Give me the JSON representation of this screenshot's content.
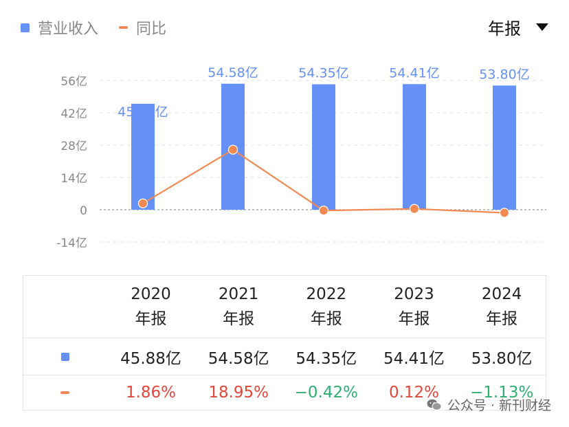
{
  "legend": {
    "bar_label": "营业收入",
    "line_label": "同比"
  },
  "period_selector": {
    "label": "年报"
  },
  "colors": {
    "bar": "#6590f6",
    "line": "#f08a52",
    "positive": "#e2473c",
    "negative": "#2eae6f",
    "axis_text": "#888888"
  },
  "chart_data": {
    "type": "bar",
    "categories": [
      "2020",
      "2021",
      "2022",
      "2023",
      "2024"
    ],
    "series": [
      {
        "name": "营业收入",
        "type": "bar",
        "values": [
          45.88,
          54.58,
          54.35,
          54.41,
          53.8
        ],
        "labels": [
          "45.88亿",
          "54.58亿",
          "54.35亿",
          "54.41亿",
          "53.80亿"
        ]
      },
      {
        "name": "同比",
        "type": "line",
        "values": [
          1.86,
          18.95,
          -0.42,
          0.12,
          -1.13
        ],
        "unit": "%"
      }
    ],
    "y_ticks": [
      "56亿",
      "42亿",
      "28亿",
      "14亿",
      "0",
      "-14亿"
    ],
    "ylim": [
      -14,
      56
    ],
    "grid": true
  },
  "table": {
    "columns": [
      {
        "year": "2020",
        "period": "年报"
      },
      {
        "year": "2021",
        "period": "年报"
      },
      {
        "year": "2022",
        "period": "年报"
      },
      {
        "year": "2023",
        "period": "年报"
      },
      {
        "year": "2024",
        "period": "年报"
      }
    ],
    "revenue": [
      "45.88亿",
      "54.58亿",
      "54.35亿",
      "54.41亿",
      "53.80亿"
    ],
    "yoy": [
      "1.86%",
      "18.95%",
      "−0.42%",
      "0.12%",
      "−1.13%"
    ]
  },
  "watermark": {
    "text": "公众号 · 新刊财经"
  }
}
